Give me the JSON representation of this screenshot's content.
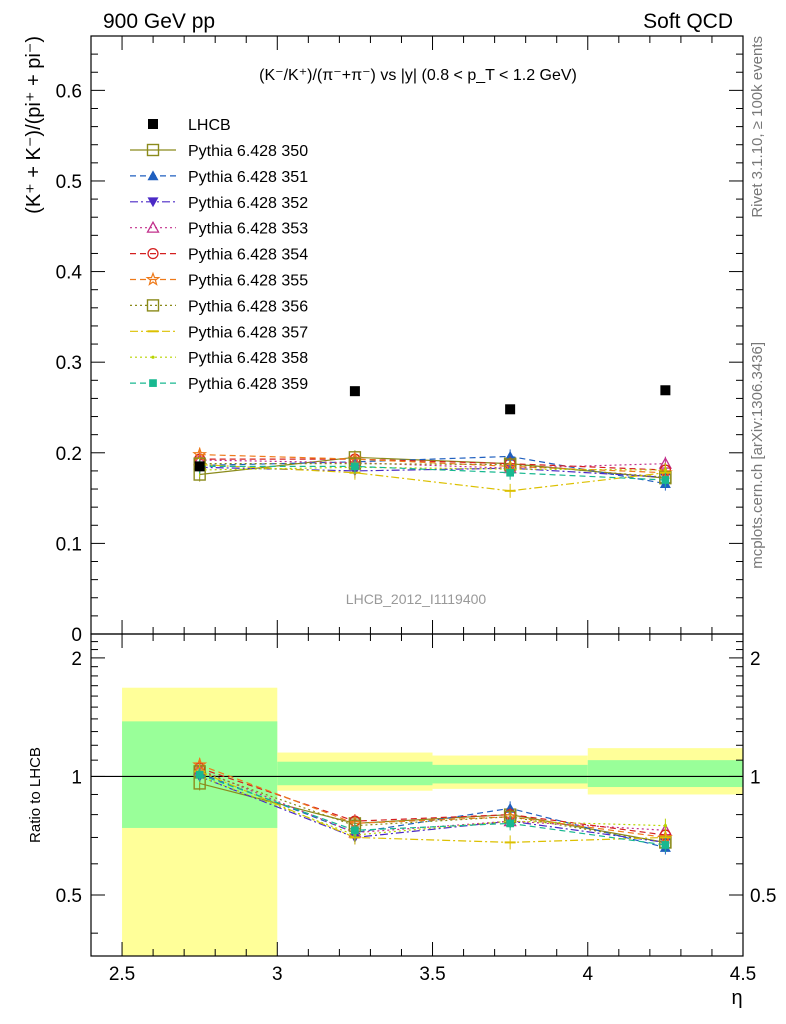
{
  "header": {
    "left_label": "900 GeV pp",
    "right_label": "Soft QCD",
    "side_label_top": "Rivet 3.1.10, ≥ 100k events",
    "side_label_bottom": "mcplots.cern.ch [arXiv:1306.3436]",
    "watermark": "LHCB_2012_I1119400"
  },
  "chart_data": [
    {
      "type": "scatter",
      "panel": "main",
      "title": "(K⁻/K⁺)/(π⁻+π⁻) vs |y| (0.8 < p_T < 1.2 GeV)",
      "ylabel": "(K⁺ + K⁻)/(pi⁺ + pi⁻)",
      "xlim": [
        2.4,
        4.5
      ],
      "ylim": [
        0,
        0.66
      ],
      "y_ticks": [
        0,
        0.1,
        0.2,
        0.3,
        0.4,
        0.5,
        0.6
      ],
      "y_tick_labels": [
        "0",
        "0.1",
        "0.2",
        "0.3",
        "0.4",
        "0.5",
        "0.6"
      ],
      "legend_position": "top-left",
      "x": [
        2.75,
        3.25,
        3.75,
        4.25
      ],
      "reference": {
        "name": "LHCB",
        "color": "#000000",
        "values": [
          0.185,
          0.268,
          0.248,
          0.269
        ]
      },
      "series": [
        {
          "name": "Pythia 6.428 350",
          "color": "#8b8b1c",
          "marker": "open-square",
          "dash": "solid",
          "values": [
            0.176,
            0.195,
            0.188,
            0.172
          ]
        },
        {
          "name": "Pythia 6.428 351",
          "color": "#1f5fbf",
          "marker": "filled-triangle-up",
          "dash": "dashed",
          "values": [
            0.186,
            0.19,
            0.196,
            0.166
          ]
        },
        {
          "name": "Pythia 6.428 352",
          "color": "#4b2ac6",
          "marker": "filled-triangle-down",
          "dash": "dashdot",
          "values": [
            0.184,
            0.18,
            0.183,
            0.173
          ]
        },
        {
          "name": "Pythia 6.428 353",
          "color": "#c2308c",
          "marker": "open-triangle-up",
          "dash": "dotted",
          "values": [
            0.192,
            0.189,
            0.183,
            0.188
          ]
        },
        {
          "name": "Pythia 6.428 354",
          "color": "#d42020",
          "marker": "open-circle",
          "dash": "dashed",
          "values": [
            0.193,
            0.193,
            0.188,
            0.181
          ]
        },
        {
          "name": "Pythia 6.428 355",
          "color": "#ee7a1a",
          "marker": "open-star",
          "dash": "dashed",
          "values": [
            0.198,
            0.193,
            0.185,
            0.178
          ]
        },
        {
          "name": "Pythia 6.428 356",
          "color": "#8a8a1a",
          "marker": "open-square",
          "dash": "dotted",
          "values": [
            0.188,
            0.188,
            0.187,
            0.173
          ]
        },
        {
          "name": "Pythia 6.428 357",
          "color": "#dcc000",
          "marker": "bar",
          "dash": "dashdot",
          "values": [
            0.187,
            0.178,
            0.158,
            0.178
          ]
        },
        {
          "name": "Pythia 6.428 358",
          "color": "#b8d400",
          "marker": "dot",
          "dash": "dotted",
          "values": [
            0.181,
            0.184,
            0.182,
            0.181
          ]
        },
        {
          "name": "Pythia 6.428 359",
          "color": "#18b890",
          "marker": "filled-square",
          "dash": "dashed",
          "values": [
            0.185,
            0.185,
            0.178,
            0.17
          ]
        }
      ]
    },
    {
      "type": "scatter",
      "panel": "ratio",
      "ylabel": "Ratio to LHCB",
      "xlabel": "η",
      "xlim": [
        2.4,
        4.5
      ],
      "ylim": [
        0.35,
        2.3
      ],
      "x_ticks": [
        2.5,
        3,
        3.5,
        4,
        4.5
      ],
      "x_tick_labels": [
        "2.5",
        "3",
        "3.5",
        "4",
        "4.5"
      ],
      "y_ticks": [
        0.5,
        1,
        2
      ],
      "y_tick_labels": [
        "0.5",
        "1",
        "2"
      ],
      "bands": [
        {
          "x0": 2.5,
          "x1": 3.0,
          "inner": [
            0.74,
            1.38
          ],
          "outer": [
            0.35,
            1.68
          ]
        },
        {
          "x0": 3.0,
          "x1": 3.5,
          "inner": [
            0.95,
            1.09
          ],
          "outer": [
            0.92,
            1.15
          ]
        },
        {
          "x0": 3.5,
          "x1": 4.0,
          "inner": [
            0.96,
            1.07
          ],
          "outer": [
            0.93,
            1.13
          ]
        },
        {
          "x0": 4.0,
          "x1": 4.5,
          "inner": [
            0.94,
            1.1
          ],
          "outer": [
            0.9,
            1.18
          ]
        }
      ],
      "x": [
        2.75,
        3.25,
        3.75,
        4.25
      ],
      "series": [
        {
          "name": "Pythia 6.428 350",
          "values": [
            0.96,
            0.76,
            0.8,
            0.68
          ]
        },
        {
          "name": "Pythia 6.428 351",
          "values": [
            1.02,
            0.72,
            0.83,
            0.66
          ]
        },
        {
          "name": "Pythia 6.428 352",
          "values": [
            1.0,
            0.7,
            0.77,
            0.68
          ]
        },
        {
          "name": "Pythia 6.428 353",
          "values": [
            1.04,
            0.72,
            0.77,
            0.73
          ]
        },
        {
          "name": "Pythia 6.428 354",
          "values": [
            1.05,
            0.77,
            0.8,
            0.71
          ]
        },
        {
          "name": "Pythia 6.428 355",
          "values": [
            1.07,
            0.76,
            0.79,
            0.7
          ]
        },
        {
          "name": "Pythia 6.428 356",
          "values": [
            1.03,
            0.75,
            0.79,
            0.68
          ]
        },
        {
          "name": "Pythia 6.428 357",
          "values": [
            1.03,
            0.7,
            0.68,
            0.7
          ]
        },
        {
          "name": "Pythia 6.428 358",
          "values": [
            1.0,
            0.71,
            0.77,
            0.75
          ]
        },
        {
          "name": "Pythia 6.428 359",
          "values": [
            1.01,
            0.73,
            0.76,
            0.67
          ]
        }
      ]
    }
  ]
}
